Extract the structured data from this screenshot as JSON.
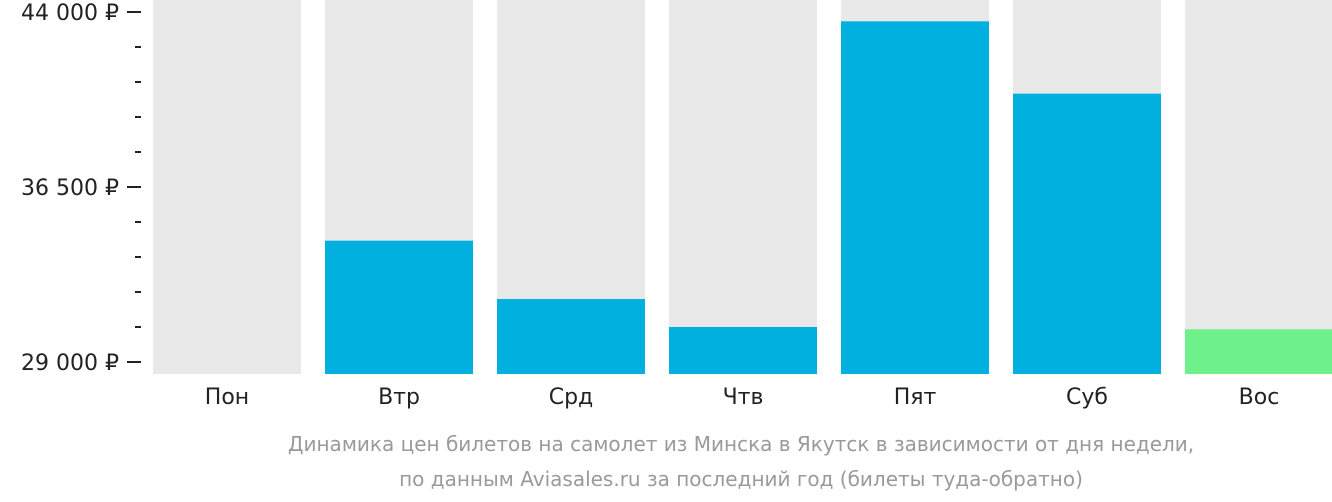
{
  "chart_data": {
    "type": "bar",
    "categories": [
      "Пон",
      "Втр",
      "Срд",
      "Чтв",
      "Пят",
      "Суб",
      "Вос"
    ],
    "values": [
      29000,
      34200,
      31700,
      30500,
      43600,
      40500,
      30400
    ],
    "ylim": [
      29000,
      44000
    ],
    "y_tick_labels": [
      "44 000 ₽",
      "36 500 ₽",
      "29 000 ₽"
    ],
    "y_tick_values": [
      44000,
      36500,
      29000
    ],
    "y_minor_step": 1500,
    "caption_line1": "Динамика цен билетов на самолет из Минска в Якутск в зависимости от дня недели,",
    "caption_line2": "по данным Aviasales.ru за последний год (билеты туда-обратно)",
    "colors": {
      "background_bar": "#e8e8e8",
      "bar": "#00b0de",
      "lowest_bar": "#6ef08a",
      "axis": "#222222",
      "caption": "#9a9a9a"
    },
    "highlight_category": "Вос",
    "grid": false,
    "legend": "none"
  }
}
